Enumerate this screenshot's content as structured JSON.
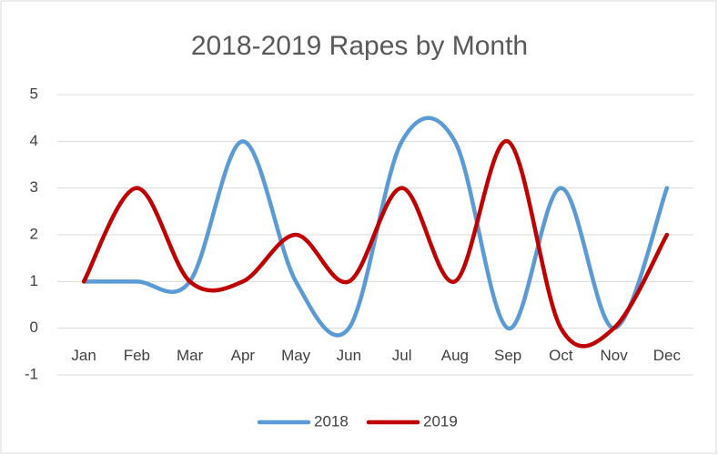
{
  "chart_data": {
    "type": "line",
    "title": "2018-2019 Rapes by Month",
    "categories": [
      "Jan",
      "Feb",
      "Mar",
      "Apr",
      "May",
      "Jun",
      "Jul",
      "Aug",
      "Sep",
      "Oct",
      "Nov",
      "Dec"
    ],
    "series": [
      {
        "name": "2018",
        "color": "#5b9bd5",
        "values": [
          1,
          1,
          1,
          4,
          1,
          0,
          4,
          4,
          0,
          3,
          0,
          3
        ]
      },
      {
        "name": "2019",
        "color": "#c00000",
        "values": [
          1,
          3,
          1,
          1,
          2,
          1,
          3,
          1,
          4,
          0,
          0,
          2
        ]
      }
    ],
    "ylim": [
      -1,
      5
    ],
    "yticks": [
      -1,
      0,
      1,
      2,
      3,
      4,
      5
    ],
    "grid": true,
    "smooth": true,
    "legend": "bottom"
  }
}
